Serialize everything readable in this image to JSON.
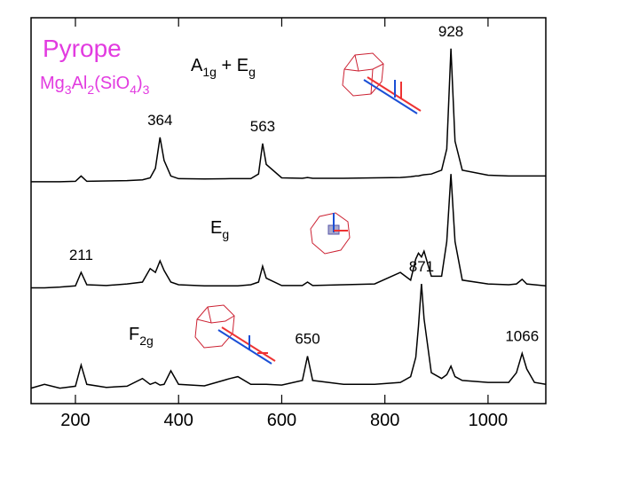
{
  "chart_data": {
    "type": "line",
    "title": "Pyrope",
    "subtitle": [
      "Mg",
      "3",
      "Al",
      "2",
      "(SiO",
      "4",
      ")",
      "3"
    ],
    "annotations": [
      [
        "A",
        "1g",
        " + E",
        "g"
      ],
      [
        "E",
        "g"
      ],
      [
        "F",
        "2g"
      ]
    ],
    "x": [
      114,
      140,
      170,
      200,
      211,
      222,
      260,
      300,
      330,
      345,
      355,
      364,
      372,
      385,
      400,
      450,
      500,
      515,
      540,
      555,
      563,
      570,
      600,
      640,
      650,
      660,
      720,
      780,
      830,
      850,
      860,
      865,
      871,
      876,
      890,
      910,
      920,
      928,
      936,
      950,
      1000,
      1040,
      1055,
      1066,
      1075,
      1090,
      1112
    ],
    "series": [
      {
        "color": "#000000",
        "peak_labels": [
          364,
          563,
          928
        ],
        "values": [
          57.5,
          57.5,
          57.5,
          57.6,
          59,
          57.6,
          57.7,
          57.8,
          58,
          58.5,
          61,
          69,
          63,
          59,
          58.3,
          58.2,
          58.3,
          58.3,
          58.3,
          59.5,
          67.4,
          62,
          58.5,
          58.4,
          58.6,
          58.4,
          58.4,
          58.5,
          58.6,
          58.8,
          59,
          59,
          59.2,
          59.3,
          59.5,
          60.5,
          66,
          92,
          68,
          60.5,
          59.2,
          59,
          59,
          59,
          59,
          59,
          59
        ]
      },
      {
        "color": "#000000",
        "peak_labels": [
          211
        ],
        "values": [
          30,
          30,
          30.2,
          30.5,
          34,
          30.8,
          30.6,
          31,
          31.5,
          35,
          34,
          37,
          34.5,
          31.5,
          30.8,
          30.5,
          30.5,
          30.5,
          30.8,
          31.5,
          35.6,
          32.5,
          30.6,
          30.6,
          31.5,
          30.6,
          30.8,
          31,
          34,
          32,
          37.5,
          39,
          38,
          39.5,
          33,
          33,
          42,
          59.5,
          42,
          32,
          31,
          30.8,
          31,
          32.2,
          31,
          30.8,
          30.5
        ]
      },
      {
        "color": "#000000",
        "peak_labels": [
          871,
          650,
          1066
        ],
        "values": [
          4,
          5,
          4,
          4.5,
          10,
          5,
          4.2,
          4.5,
          6.5,
          5,
          5.5,
          4.8,
          5,
          8.5,
          5,
          4.6,
          6.5,
          7,
          5,
          5,
          5,
          5,
          4.8,
          6,
          12.3,
          6,
          5,
          5,
          5.5,
          7,
          12,
          20,
          31,
          22,
          8,
          6.5,
          7.5,
          9.7,
          7,
          6,
          5.5,
          5.5,
          8,
          13,
          9,
          5.5,
          5
        ]
      }
    ],
    "xlim": [
      114,
      1112
    ],
    "ylim": [
      0,
      100
    ],
    "xticks": [
      200,
      400,
      600,
      800,
      1000
    ]
  }
}
